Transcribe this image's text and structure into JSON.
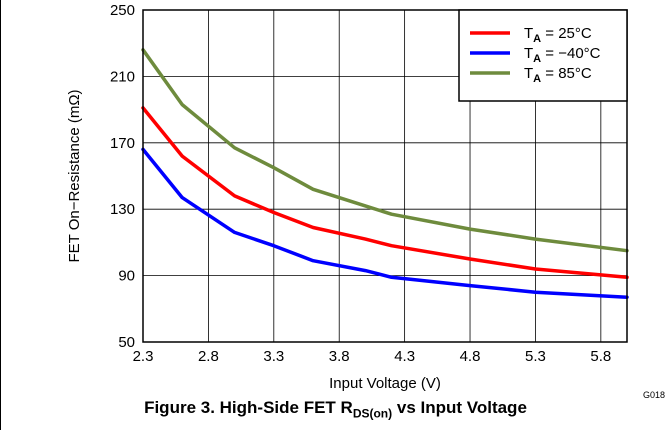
{
  "chart_data": {
    "type": "line",
    "title": "",
    "xlabel": "Input Voltage (V)",
    "ylabel": "FET On−Resistance (mΩ)",
    "xlim": [
      2.3,
      6.0
    ],
    "ylim": [
      50,
      250
    ],
    "xticks": [
      2.3,
      2.8,
      3.3,
      3.8,
      4.3,
      4.8,
      5.3,
      5.8
    ],
    "xtick_labels": [
      "2.3",
      "2.8",
      "3.3",
      "3.8",
      "4.3",
      "4.8",
      "5.3",
      "5.8"
    ],
    "yticks": [
      50,
      90,
      130,
      170,
      210,
      250
    ],
    "ytick_labels": [
      "50",
      "90",
      "130",
      "170",
      "210",
      "250"
    ],
    "grid": true,
    "legend_position": "top-right",
    "series": [
      {
        "name_main": "T",
        "name_sub": "A",
        "name_rest": " = 25°C",
        "color": "#ff0000",
        "x": [
          2.3,
          2.6,
          3.0,
          3.3,
          3.6,
          4.0,
          4.2,
          4.8,
          5.3,
          6.0
        ],
        "y": [
          191,
          162,
          138,
          128,
          119,
          112,
          108,
          100,
          94,
          89
        ]
      },
      {
        "name_main": "T",
        "name_sub": "A",
        "name_rest": " = −40°C",
        "color": "#0000ff",
        "x": [
          2.3,
          2.6,
          3.0,
          3.3,
          3.6,
          4.0,
          4.2,
          4.8,
          5.3,
          6.0
        ],
        "y": [
          166,
          137,
          116,
          108,
          99,
          93,
          89,
          84,
          80,
          77
        ]
      },
      {
        "name_main": "T",
        "name_sub": "A",
        "name_rest": " = 85°C",
        "color": "#6e8b3d",
        "x": [
          2.3,
          2.6,
          3.0,
          3.3,
          3.6,
          4.0,
          4.2,
          4.8,
          5.3,
          6.0
        ],
        "y": [
          226,
          193,
          167,
          155,
          142,
          132,
          127,
          118,
          112,
          105
        ]
      }
    ],
    "annotation": "G018"
  },
  "caption": {
    "prefix": "Figure 3. High-Side FET R",
    "subscript": "DS(on)",
    "suffix": " vs Input Voltage"
  }
}
